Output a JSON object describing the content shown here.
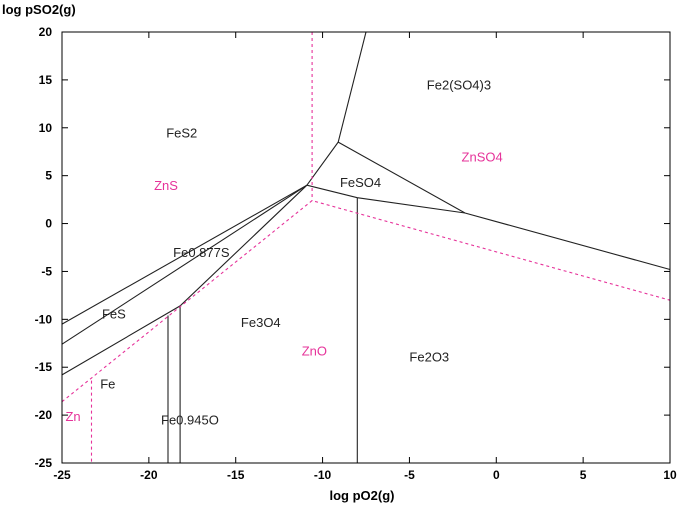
{
  "chart_data": {
    "type": "line",
    "title": "",
    "xlabel": "log pO2(g)",
    "ylabel": "log pSO2(g)",
    "xlim": [
      -25,
      10
    ],
    "ylim": [
      -25,
      20
    ],
    "xticks": [
      -25,
      -20,
      -15,
      -10,
      -5,
      0,
      5,
      10
    ],
    "yticks": [
      -25,
      -20,
      -15,
      -10,
      -5,
      0,
      5,
      10,
      15,
      20
    ],
    "grid": false,
    "legend": "none",
    "colors": {
      "fe_system": "#222222",
      "zn_system": "#e6339a"
    },
    "fe_boundaries": [
      {
        "x": [
          -25,
          -10.9
        ],
        "y": [
          -10.5,
          4.0
        ]
      },
      {
        "x": [
          -25,
          -10.9
        ],
        "y": [
          -12.6,
          4.0
        ]
      },
      {
        "x": [
          -25,
          -18.2,
          -10.9
        ],
        "y": [
          -15.8,
          -8.6,
          4.0
        ]
      },
      {
        "x": [
          -18.9,
          -18.9
        ],
        "y": [
          -9.6,
          -25
        ]
      },
      {
        "x": [
          -18.2,
          -18.2
        ],
        "y": [
          -8.6,
          -25
        ]
      },
      {
        "x": [
          -10.9,
          -9.1,
          -7.5
        ],
        "y": [
          4.0,
          8.5,
          20
        ]
      },
      {
        "x": [
          -10.9,
          -8.0,
          -1.8
        ],
        "y": [
          4.0,
          2.7,
          1.1
        ]
      },
      {
        "x": [
          -9.1,
          -1.8,
          10
        ],
        "y": [
          8.5,
          1.1,
          -4.8
        ]
      },
      {
        "x": [
          -8.0,
          -8.0
        ],
        "y": [
          2.7,
          -25
        ]
      }
    ],
    "zn_boundaries": [
      {
        "x": [
          -10.6,
          -10.6
        ],
        "y": [
          20,
          2.4
        ]
      },
      {
        "x": [
          -25,
          -10.6,
          10
        ],
        "y": [
          -18.6,
          2.4,
          -8.0
        ]
      },
      {
        "x": [
          -23.3,
          -23.3
        ],
        "y": [
          -16.4,
          -25
        ]
      }
    ],
    "annotations": [
      {
        "text": "FeS2",
        "x": -19.0,
        "y": 9.0,
        "system": "fe"
      },
      {
        "text": "ZnS",
        "x": -19.7,
        "y": 3.5,
        "system": "zn"
      },
      {
        "text": "Fe2(SO4)3",
        "x": -4.0,
        "y": 14.0,
        "system": "fe"
      },
      {
        "text": "ZnSO4",
        "x": -2.0,
        "y": 6.5,
        "system": "zn"
      },
      {
        "text": "FeSO4",
        "x": -9.0,
        "y": 3.8,
        "system": "fe"
      },
      {
        "text": "Fe0.877S",
        "x": -18.6,
        "y": -3.5,
        "system": "fe"
      },
      {
        "text": "FeS",
        "x": -22.7,
        "y": -9.9,
        "system": "fe"
      },
      {
        "text": "Fe3O4",
        "x": -14.7,
        "y": -10.8,
        "system": "fe"
      },
      {
        "text": "ZnO",
        "x": -11.2,
        "y": -13.8,
        "system": "zn"
      },
      {
        "text": "Fe2O3",
        "x": -5.0,
        "y": -14.4,
        "system": "fe"
      },
      {
        "text": "Fe",
        "x": -22.8,
        "y": -17.2,
        "system": "fe"
      },
      {
        "text": "Fe0.945O",
        "x": -19.3,
        "y": -21.0,
        "system": "fe"
      },
      {
        "text": "Zn",
        "x": -24.8,
        "y": -20.6,
        "system": "zn"
      }
    ]
  }
}
